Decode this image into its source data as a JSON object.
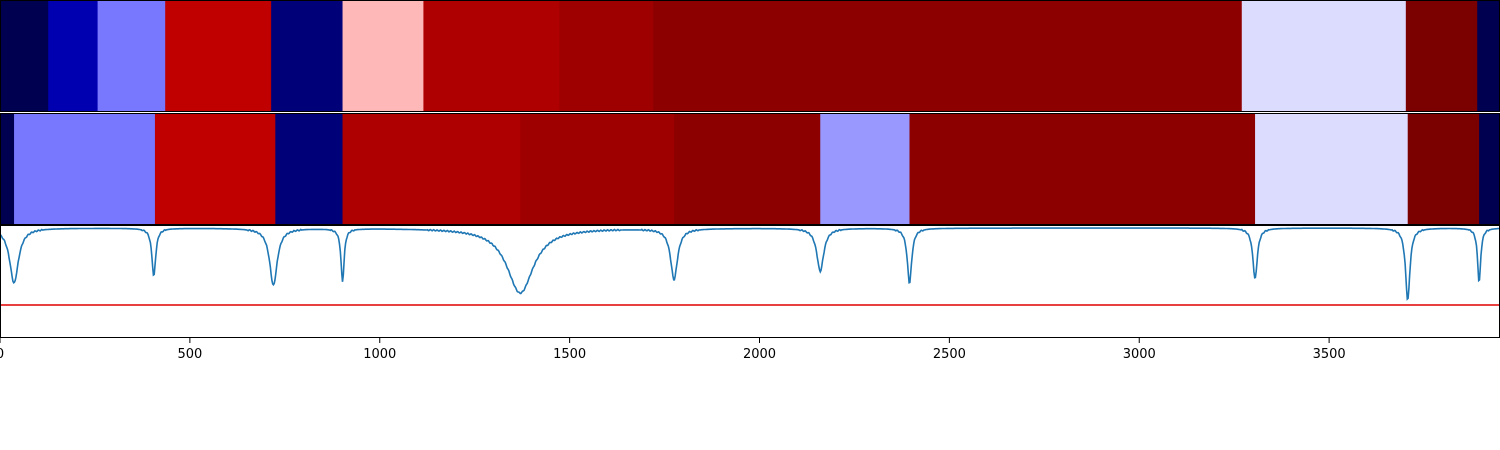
{
  "chart_data": {
    "type": "heatmap",
    "xlim": [
      0,
      3950
    ],
    "x_ticks": [
      0,
      500,
      1000,
      1500,
      2000,
      2500,
      3000,
      3500
    ],
    "x_tick_labels": [
      "0",
      "500",
      "1000",
      "1500",
      "2000",
      "2500",
      "3000",
      "3500"
    ],
    "segment_rows": [
      {
        "segments": [
          {
            "start": 0,
            "end": 127,
            "color": "#000050"
          },
          {
            "start": 127,
            "end": 257,
            "color": "#0000b0"
          },
          {
            "start": 257,
            "end": 435,
            "color": "#7878ff"
          },
          {
            "start": 435,
            "end": 714,
            "color": "#c00000"
          },
          {
            "start": 714,
            "end": 902,
            "color": "#000078"
          },
          {
            "start": 902,
            "end": 1115,
            "color": "#ffb8b8"
          },
          {
            "start": 1115,
            "end": 1473,
            "color": "#ae0000"
          },
          {
            "start": 1473,
            "end": 1720,
            "color": "#9e0000"
          },
          {
            "start": 1720,
            "end": 3270,
            "color": "#8d0000"
          },
          {
            "start": 3270,
            "end": 3702,
            "color": "#dcdcff"
          },
          {
            "start": 3702,
            "end": 3890,
            "color": "#7b0000"
          },
          {
            "start": 3890,
            "end": 3950,
            "color": "#000050"
          }
        ]
      },
      {
        "segments": [
          {
            "start": 0,
            "end": 37,
            "color": "#000050"
          },
          {
            "start": 37,
            "end": 408,
            "color": "#7878ff"
          },
          {
            "start": 408,
            "end": 725,
            "color": "#c00000"
          },
          {
            "start": 725,
            "end": 902,
            "color": "#000078"
          },
          {
            "start": 902,
            "end": 1370,
            "color": "#ae0000"
          },
          {
            "start": 1370,
            "end": 1775,
            "color": "#9e0000"
          },
          {
            "start": 1775,
            "end": 2160,
            "color": "#8d0000"
          },
          {
            "start": 2160,
            "end": 2395,
            "color": "#9898ff"
          },
          {
            "start": 2395,
            "end": 3305,
            "color": "#8d0000"
          },
          {
            "start": 3305,
            "end": 3707,
            "color": "#dcdcff"
          },
          {
            "start": 3707,
            "end": 3895,
            "color": "#7b0000"
          },
          {
            "start": 3895,
            "end": 3950,
            "color": "#000050"
          }
        ]
      }
    ],
    "signal": {
      "color": "#1f77b4",
      "ylim": [
        -1.1,
        0.02
      ],
      "dips": [
        {
          "x": 37,
          "depth": 0.55,
          "width": 28
        },
        {
          "x": 405,
          "depth": 0.48,
          "width": 12
        },
        {
          "x": 720,
          "depth": 0.57,
          "width": 24
        },
        {
          "x": 902,
          "depth": 0.53,
          "width": 10
        },
        {
          "x": 1370,
          "depth": 0.65,
          "width": 85
        },
        {
          "x": 1775,
          "depth": 0.51,
          "width": 22
        },
        {
          "x": 2160,
          "depth": 0.43,
          "width": 22
        },
        {
          "x": 2395,
          "depth": 0.55,
          "width": 14
        },
        {
          "x": 3305,
          "depth": 0.51,
          "width": 14
        },
        {
          "x": 3707,
          "depth": 0.72,
          "width": 14
        },
        {
          "x": 3895,
          "depth": 0.54,
          "width": 10
        }
      ],
      "threshold": {
        "y": -0.77,
        "color": "#e00000"
      }
    }
  }
}
